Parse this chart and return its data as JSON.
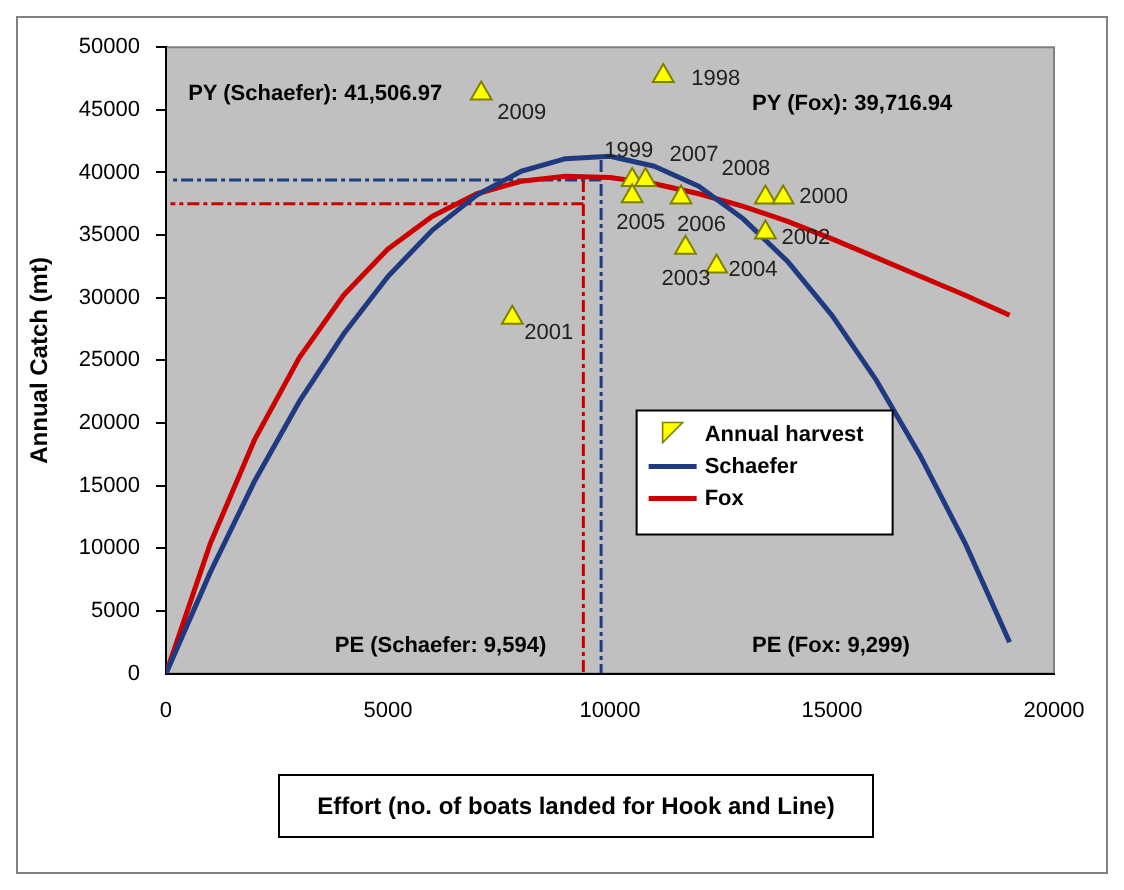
{
  "chart_data": {
    "type": "line",
    "ylabel": "Annual Catch (mt)",
    "xlabel": "Effort (no. of boats landed for Hook and Line)",
    "xlim": [
      0,
      20000
    ],
    "xticks": [
      0,
      5000,
      10000,
      15000,
      20000
    ],
    "ylim": [
      0,
      50000
    ],
    "yticks": [
      0,
      5000,
      10000,
      15000,
      20000,
      25000,
      30000,
      35000,
      40000,
      45000,
      50000
    ],
    "grid": false,
    "legend": "bottom right",
    "series": [
      {
        "name": "Annual harvest",
        "type": "scatter",
        "color": "#ffff00",
        "marker": "triangle",
        "x": [
          11200,
          7100,
          10500,
          10800,
          10500,
          11600,
          13500,
          13900,
          13500,
          11700,
          12400,
          7800
        ],
        "values": [
          47700,
          46300,
          39400,
          39400,
          38100,
          38000,
          38000,
          38000,
          35200,
          34000,
          32500,
          28400
        ]
      },
      {
        "name": "Schaefer",
        "color": "#1f3a80",
        "marker": "none",
        "x": [
          0,
          1000,
          2000,
          3000,
          4000,
          5000,
          6000,
          7000,
          8000,
          9000,
          10000,
          11000,
          12000,
          13000,
          14000,
          15000,
          16000,
          17000,
          18000,
          19000
        ],
        "values": [
          0,
          8100,
          15400,
          21700,
          27100,
          31700,
          35400,
          38200,
          40100,
          41100,
          41300,
          40500,
          38900,
          36300,
          32900,
          28600,
          23400,
          17300,
          10400,
          2500
        ]
      },
      {
        "name": "Fox",
        "color": "#cc0000",
        "marker": "none",
        "x": [
          0,
          1000,
          2000,
          3000,
          4000,
          5000,
          6000,
          7000,
          8000,
          9000,
          10000,
          11000,
          12000,
          13000,
          14000,
          15000,
          16000,
          17000,
          18000,
          19000
        ],
        "values": [
          0,
          10400,
          18700,
          25200,
          30200,
          33900,
          36500,
          38300,
          39300,
          39700,
          39600,
          39100,
          38300,
          37300,
          36100,
          34700,
          33200,
          31700,
          30200,
          28600
        ]
      },
      {
        "color": "#1f3a80",
        "marker": "none",
        "line_style": "dashed",
        "x": [
          9800,
          9800
        ],
        "values": [
          41000,
          0
        ]
      },
      {
        "color": "#1f3a80",
        "marker": "none",
        "line_style": "dashed",
        "x": [
          9800,
          100
        ],
        "values": [
          39400,
          39400
        ]
      },
      {
        "color": "#cc0000",
        "marker": "none",
        "line_style": "dashed",
        "x": [
          9400,
          9400
        ],
        "values": [
          39400,
          0
        ]
      },
      {
        "color": "#cc0000",
        "marker": "none",
        "line_style": "dashed",
        "x": [
          9400,
          100
        ],
        "values": [
          37500,
          37500
        ]
      }
    ],
    "annotations": [
      "PY (Schaefer): 41,506.97",
      "PY (Fox): 39,716.94",
      "PE (Schaefer: 9,594)",
      "PE (Fox: 9,299)",
      {
        "text": "1998",
        "x": 11200,
        "y": 47700
      },
      {
        "text": "2009",
        "x": 7100,
        "y": 46300
      },
      {
        "text": "1999",
        "x": 10500,
        "y": 39400
      },
      {
        "text": "2007",
        "x": 10800,
        "y": 39400
      },
      {
        "text": "2005",
        "x": 10500,
        "y": 38100
      },
      {
        "text": "2006",
        "x": 11600,
        "y": 38000
      },
      {
        "text": "2008",
        "x": 13500,
        "y": 38000
      },
      {
        "text": "2000",
        "x": 13900,
        "y": 38000
      },
      {
        "text": "2002",
        "x": 13500,
        "y": 35200
      },
      {
        "text": "2003",
        "x": 11700,
        "y": 34000
      },
      {
        "text": "2004",
        "x": 12400,
        "y": 32500
      },
      {
        "text": "2001",
        "x": 7800,
        "y": 28400
      }
    ]
  }
}
